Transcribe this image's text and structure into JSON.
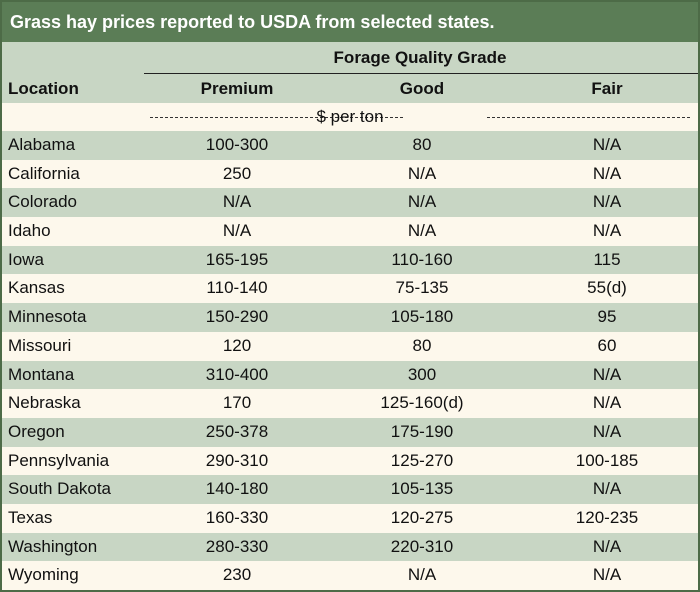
{
  "title": "Grass hay prices reported to USDA from selected states.",
  "header": {
    "group_label": "Forage Quality Grade",
    "location": "Location",
    "premium": "Premium",
    "good": "Good",
    "fair": "Fair",
    "units": "$ per ton"
  },
  "rows": [
    {
      "location": "Alabama",
      "premium": "100-300",
      "good": "80",
      "fair": "N/A"
    },
    {
      "location": "California",
      "premium": "250",
      "good": "N/A",
      "fair": "N/A"
    },
    {
      "location": "Colorado",
      "premium": "N/A",
      "good": "N/A",
      "fair": "N/A"
    },
    {
      "location": "Idaho",
      "premium": "N/A",
      "good": "N/A",
      "fair": "N/A"
    },
    {
      "location": "Iowa",
      "premium": "165-195",
      "good": "110-160",
      "fair": "115"
    },
    {
      "location": "Kansas",
      "premium": "110-140",
      "good": "75-135",
      "fair": "55(d)"
    },
    {
      "location": "Minnesota",
      "premium": "150-290",
      "good": "105-180",
      "fair": "95"
    },
    {
      "location": "Missouri",
      "premium": "120",
      "good": "80",
      "fair": "60"
    },
    {
      "location": "Montana",
      "premium": "310-400",
      "good": "300",
      "fair": "N/A"
    },
    {
      "location": "Nebraska",
      "premium": "170",
      "good": "125-160(d)",
      "fair": "N/A"
    },
    {
      "location": "Oregon",
      "premium": "250-378",
      "good": "175-190",
      "fair": "N/A"
    },
    {
      "location": "Pennsylvania",
      "premium": "290-310",
      "good": "125-270",
      "fair": "100-185"
    },
    {
      "location": "South Dakota",
      "premium": "140-180",
      "good": "105-135",
      "fair": "N/A"
    },
    {
      "location": "Texas",
      "premium": "160-330",
      "good": "120-275",
      "fair": "120-235"
    },
    {
      "location": "Washington",
      "premium": "280-330",
      "good": "220-310",
      "fair": "N/A"
    },
    {
      "location": "Wyoming",
      "premium": "230",
      "good": "N/A",
      "fair": "N/A"
    }
  ],
  "colors": {
    "title_bg": "#5b7d56",
    "band": "#c8d6c4",
    "cream": "#fdf8ec"
  }
}
